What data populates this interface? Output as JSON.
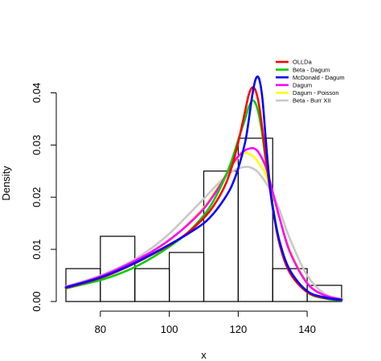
{
  "chart_data": {
    "type": "histogram-with-density-curves",
    "title": "",
    "xlabel": "x",
    "ylabel": "Density",
    "xlim": [
      70,
      150
    ],
    "ylim": [
      0,
      0.043
    ],
    "x_ticks": [
      80,
      100,
      120,
      140
    ],
    "x_tick_labels": [
      "80",
      "100",
      "120",
      "140"
    ],
    "y_ticks": [
      0.0,
      0.01,
      0.02,
      0.03,
      0.04
    ],
    "y_tick_labels": [
      "0.00",
      "0.01",
      "0.02",
      "0.03",
      "0.04"
    ],
    "grid": false,
    "legend_position": "top-right",
    "histogram": {
      "bins": [
        {
          "from": 70,
          "to": 80,
          "density": 0.0063
        },
        {
          "from": 80,
          "to": 90,
          "density": 0.0125
        },
        {
          "from": 90,
          "to": 100,
          "density": 0.0063
        },
        {
          "from": 100,
          "to": 110,
          "density": 0.0094
        },
        {
          "from": 110,
          "to": 120,
          "density": 0.025
        },
        {
          "from": 120,
          "to": 130,
          "density": 0.0313
        },
        {
          "from": 130,
          "to": 140,
          "density": 0.0063
        },
        {
          "from": 140,
          "to": 150,
          "density": 0.0031
        }
      ]
    },
    "series": [
      {
        "name": "OLLDa",
        "color": "#ff0000",
        "x": [
          70,
          75,
          80,
          85,
          90,
          95,
          100,
          105,
          110,
          113,
          116,
          118,
          120,
          122,
          123,
          124,
          125,
          126,
          127,
          128,
          130,
          132,
          135,
          140,
          145,
          150
        ],
        "y": [
          0.0026,
          0.0035,
          0.0045,
          0.0058,
          0.0073,
          0.009,
          0.0108,
          0.013,
          0.016,
          0.0185,
          0.022,
          0.0255,
          0.0305,
          0.0365,
          0.0395,
          0.041,
          0.0405,
          0.0378,
          0.033,
          0.0275,
          0.018,
          0.011,
          0.0055,
          0.0018,
          0.0007,
          0.0003
        ]
      },
      {
        "name": "Beta - Dagum",
        "color": "#00cc00",
        "x": [
          70,
          75,
          80,
          85,
          90,
          95,
          100,
          105,
          110,
          113,
          116,
          118,
          120,
          122,
          123,
          124,
          125,
          126,
          127,
          128,
          130,
          132,
          135,
          140,
          145,
          150
        ],
        "y": [
          0.0025,
          0.0033,
          0.0041,
          0.0052,
          0.0066,
          0.0084,
          0.0105,
          0.013,
          0.0165,
          0.0195,
          0.0235,
          0.0268,
          0.031,
          0.035,
          0.0372,
          0.0385,
          0.038,
          0.0358,
          0.032,
          0.027,
          0.0185,
          0.0115,
          0.0058,
          0.0018,
          0.0006,
          0.0002
        ]
      },
      {
        "name": "McDonald - Dagum",
        "color": "#0000ff",
        "x": [
          70,
          75,
          80,
          85,
          90,
          95,
          100,
          105,
          110,
          113,
          116,
          118,
          120,
          122,
          123,
          124,
          125,
          126,
          127,
          128,
          129,
          130,
          132,
          135,
          140,
          145,
          150
        ],
        "y": [
          0.0027,
          0.0036,
          0.0046,
          0.0059,
          0.0074,
          0.0091,
          0.0109,
          0.0128,
          0.015,
          0.017,
          0.0197,
          0.022,
          0.0255,
          0.0305,
          0.0345,
          0.0392,
          0.0425,
          0.0428,
          0.039,
          0.031,
          0.0235,
          0.018,
          0.0115,
          0.006,
          0.002,
          0.0008,
          0.0003
        ]
      },
      {
        "name": "Dagum",
        "color": "#ff00ff",
        "x": [
          70,
          75,
          80,
          85,
          90,
          95,
          100,
          105,
          110,
          114,
          118,
          120,
          122,
          124,
          125,
          126,
          128,
          130,
          132,
          135,
          140,
          145,
          150
        ],
        "y": [
          0.0028,
          0.0037,
          0.0048,
          0.0062,
          0.0078,
          0.0096,
          0.0118,
          0.0145,
          0.0178,
          0.0215,
          0.026,
          0.0278,
          0.029,
          0.0294,
          0.0292,
          0.0285,
          0.0258,
          0.021,
          0.016,
          0.0095,
          0.0035,
          0.0012,
          0.0004
        ]
      },
      {
        "name": "Dagum - Poisson",
        "color": "#ffff00",
        "x": [
          70,
          75,
          80,
          85,
          90,
          95,
          100,
          105,
          110,
          114,
          118,
          120,
          122,
          124,
          125,
          126,
          128,
          130,
          132,
          135,
          140,
          145,
          150
        ],
        "y": [
          0.0027,
          0.0036,
          0.0047,
          0.0061,
          0.0077,
          0.0095,
          0.0117,
          0.0146,
          0.018,
          0.0218,
          0.0258,
          0.0276,
          0.0285,
          0.028,
          0.0274,
          0.0265,
          0.0243,
          0.0205,
          0.016,
          0.0098,
          0.0036,
          0.0012,
          0.0004
        ]
      },
      {
        "name": "Beta - Burr XII",
        "color": "#c8c8c8",
        "x": [
          70,
          75,
          80,
          85,
          90,
          95,
          100,
          105,
          110,
          114,
          118,
          120,
          122,
          123,
          124,
          125,
          126,
          128,
          130,
          132,
          135,
          140,
          145,
          150
        ],
        "y": [
          0.0029,
          0.0039,
          0.005,
          0.0064,
          0.0081,
          0.0103,
          0.013,
          0.0163,
          0.0197,
          0.0225,
          0.0248,
          0.0255,
          0.0258,
          0.0258,
          0.0256,
          0.0252,
          0.0246,
          0.0228,
          0.0205,
          0.0175,
          0.012,
          0.005,
          0.0015,
          0.0005
        ]
      }
    ]
  }
}
